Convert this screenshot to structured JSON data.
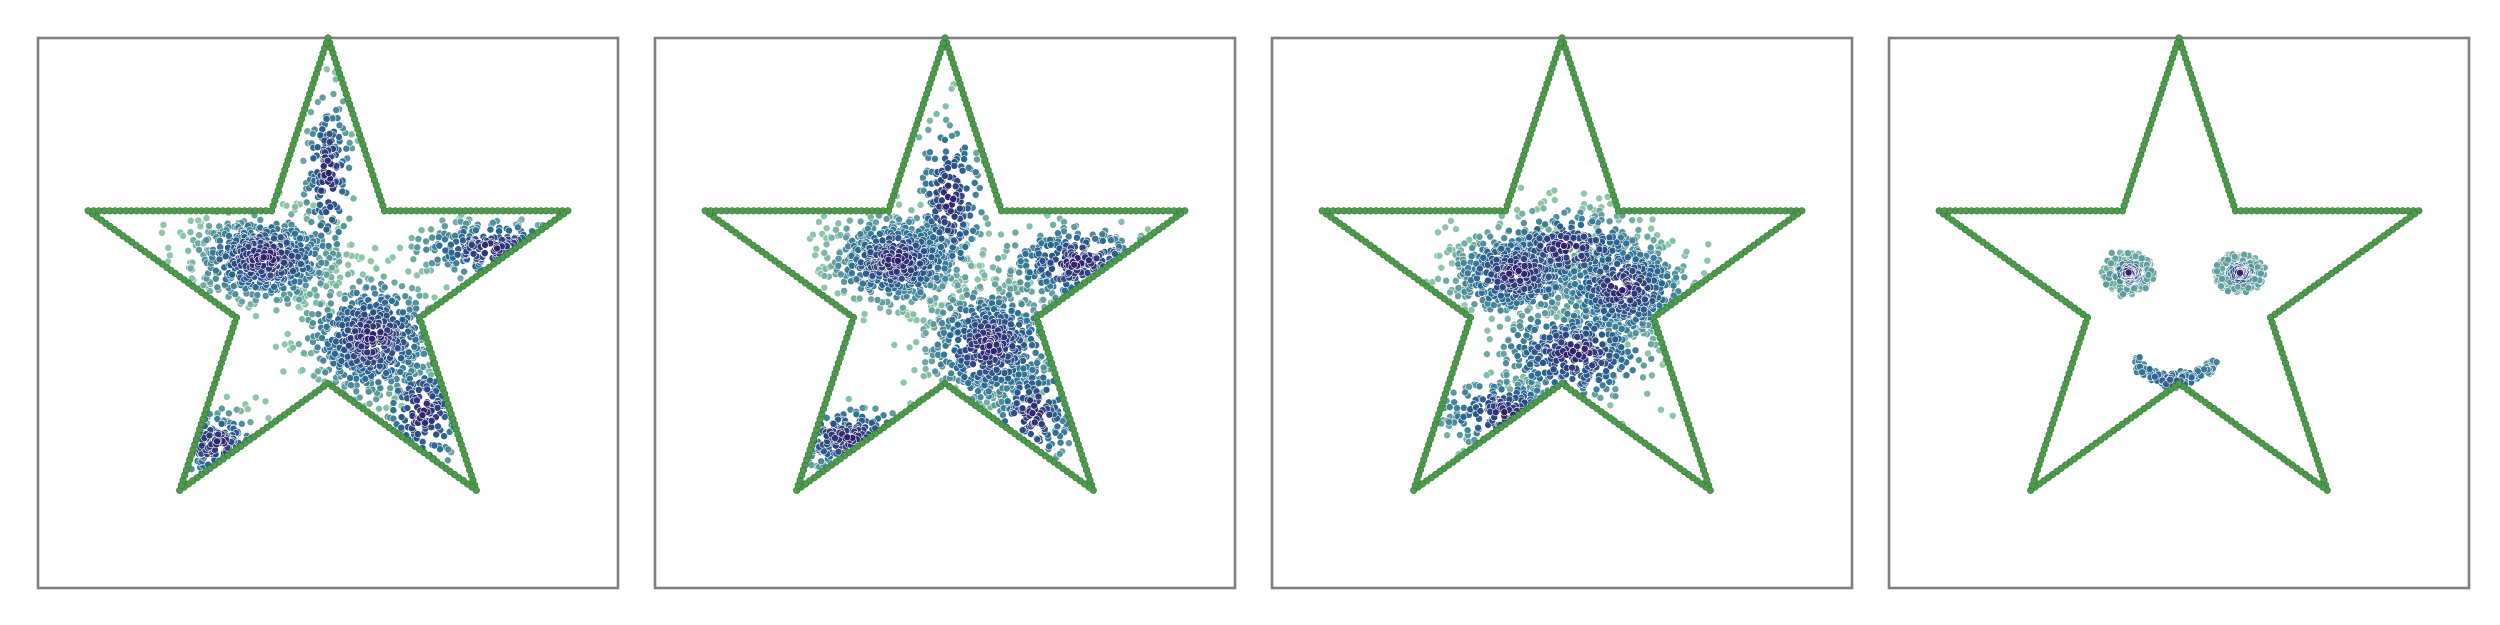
{
  "chart_data": {
    "type": "scatter",
    "title": "",
    "xlabel": "",
    "ylabel": "",
    "grid": false,
    "legend": "none",
    "xlim": [
      -1.15,
      1.15
    ],
    "ylim": [
      -1.2,
      1.0
    ],
    "colors": {
      "outline": "#4f9a4f",
      "outline_edge": "#2f7a2f",
      "frame": "#7f7f7f",
      "density_high": "#30216b",
      "density_mid": "#2b6d94",
      "density_low": "#8cc6a6"
    },
    "star_boundary": {
      "vertices": [
        {
          "x": 0.0,
          "y": 1.0
        },
        {
          "x": 0.224,
          "y": 0.309
        },
        {
          "x": 0.951,
          "y": 0.309
        },
        {
          "x": 0.363,
          "y": -0.118
        },
        {
          "x": 0.588,
          "y": -0.809
        },
        {
          "x": 0.0,
          "y": -0.382
        },
        {
          "x": -0.588,
          "y": -0.809
        },
        {
          "x": -0.363,
          "y": -0.118
        },
        {
          "x": -0.951,
          "y": 0.309
        },
        {
          "x": -0.224,
          "y": 0.309
        }
      ],
      "points_per_edge": 34
    },
    "panels": [
      {
        "name": "panel-1",
        "clusters": [
          {
            "x": -0.25,
            "y": 0.12,
            "sx": 0.14,
            "sy": 0.09,
            "n": 700
          },
          {
            "x": 0.17,
            "y": -0.2,
            "sx": 0.13,
            "sy": 0.12,
            "n": 650
          },
          {
            "x": 0.66,
            "y": 0.16,
            "sx": 0.16,
            "sy": 0.06,
            "n": 320
          },
          {
            "x": -0.45,
            "y": -0.62,
            "sx": 0.09,
            "sy": 0.07,
            "n": 260
          },
          {
            "x": 0.0,
            "y": 0.45,
            "sx": 0.05,
            "sy": 0.18,
            "n": 180
          },
          {
            "x": 0.38,
            "y": -0.5,
            "sx": 0.09,
            "sy": 0.12,
            "n": 200
          }
        ]
      },
      {
        "name": "panel-2",
        "clusters": [
          {
            "x": -0.19,
            "y": 0.11,
            "sx": 0.13,
            "sy": 0.09,
            "n": 650
          },
          {
            "x": 0.18,
            "y": -0.23,
            "sx": 0.13,
            "sy": 0.12,
            "n": 600
          },
          {
            "x": 0.52,
            "y": 0.1,
            "sx": 0.15,
            "sy": 0.08,
            "n": 340
          },
          {
            "x": -0.38,
            "y": -0.6,
            "sx": 0.14,
            "sy": 0.07,
            "n": 280
          },
          {
            "x": 0.02,
            "y": 0.35,
            "sx": 0.07,
            "sy": 0.17,
            "n": 200
          },
          {
            "x": 0.35,
            "y": -0.5,
            "sx": 0.09,
            "sy": 0.11,
            "n": 200
          }
        ]
      },
      {
        "name": "panel-3",
        "clusters": [
          {
            "x": -0.18,
            "y": 0.06,
            "sx": 0.13,
            "sy": 0.09,
            "n": 520
          },
          {
            "x": 0.24,
            "y": 0.0,
            "sx": 0.13,
            "sy": 0.1,
            "n": 540
          },
          {
            "x": 0.05,
            "y": -0.26,
            "sx": 0.16,
            "sy": 0.1,
            "n": 420
          },
          {
            "x": -0.22,
            "y": -0.5,
            "sx": 0.14,
            "sy": 0.07,
            "n": 260
          },
          {
            "x": 0.02,
            "y": 0.16,
            "sx": 0.17,
            "sy": 0.08,
            "n": 300
          }
        ]
      },
      {
        "name": "panel-4",
        "rings": [
          {
            "x": -0.2,
            "y": 0.06,
            "rx": 0.085,
            "ry": 0.07,
            "n": 170,
            "core": 90
          },
          {
            "x": 0.24,
            "y": 0.06,
            "rx": 0.085,
            "ry": 0.07,
            "n": 170,
            "core": 90
          }
        ],
        "smile": {
          "x0": -0.18,
          "x1": 0.15,
          "y0": -0.3,
          "ycurve": 0.07,
          "n": 190
        }
      }
    ]
  }
}
